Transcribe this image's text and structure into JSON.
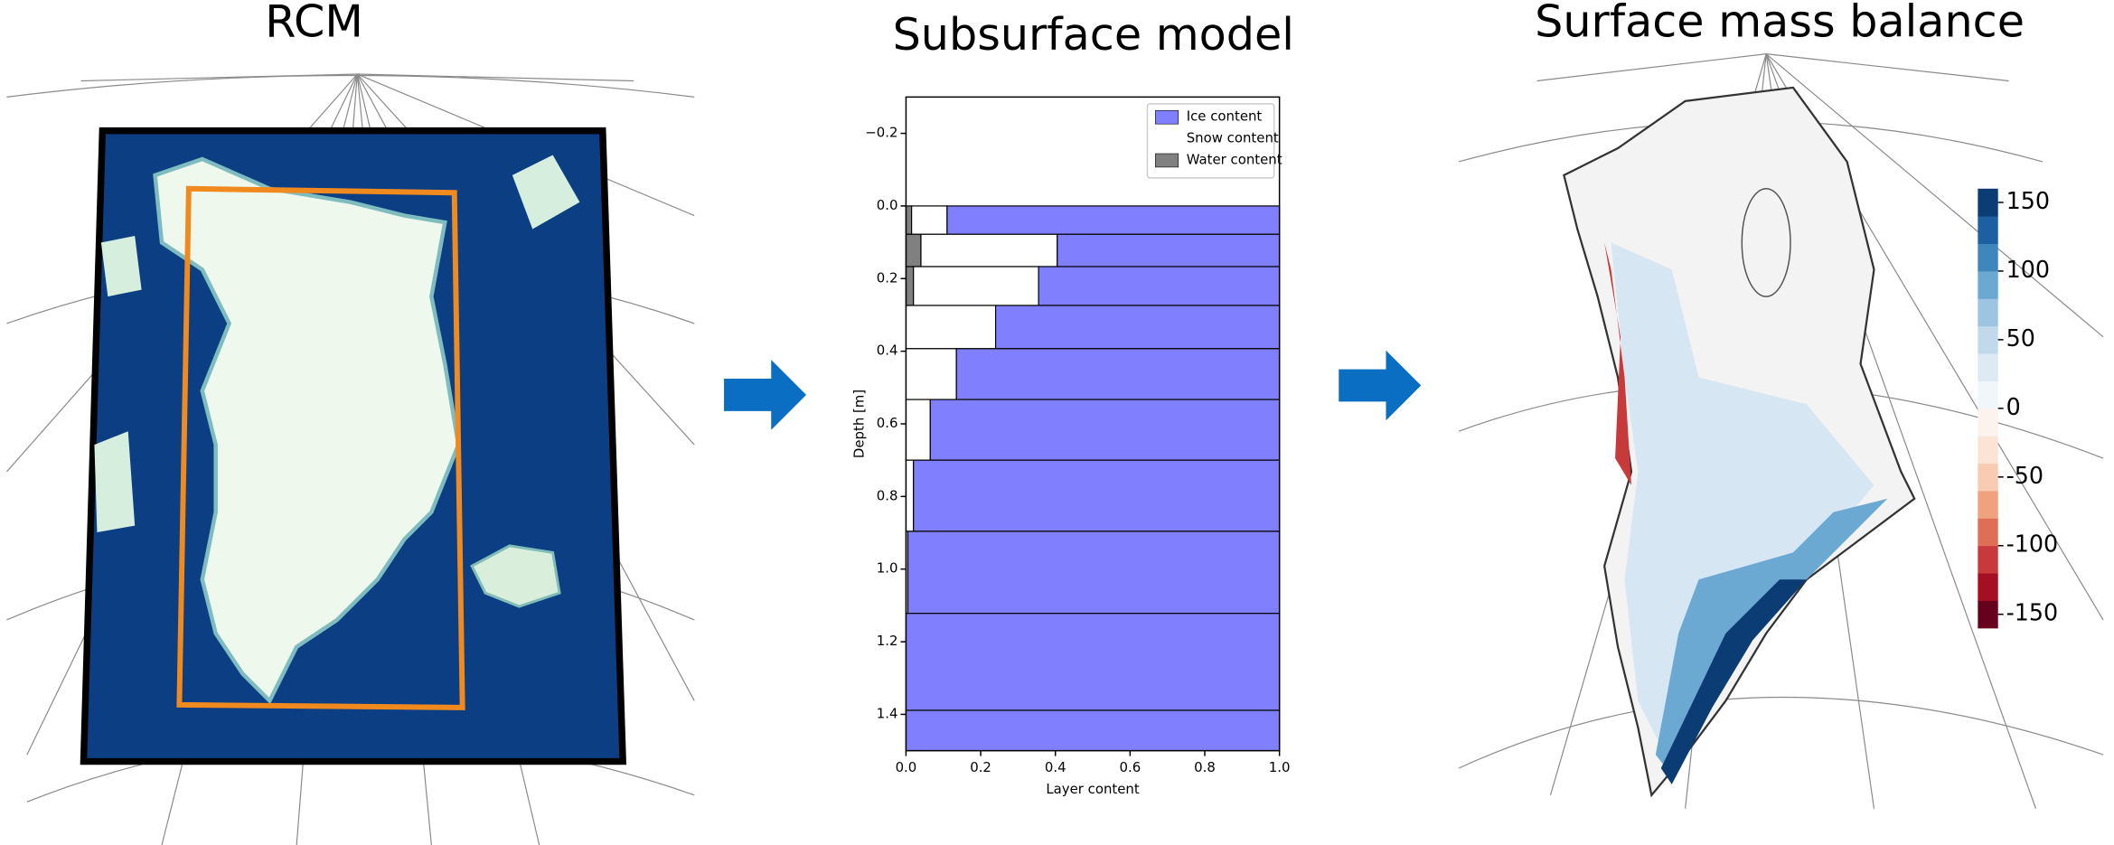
{
  "panels": [
    {
      "title": "RCM"
    },
    {
      "title": "Subsurface model"
    },
    {
      "title": "Surface mass balance",
      "colorbar": {
        "lim": [
          -160,
          160
        ],
        "ticks": [
          150,
          100,
          50,
          0,
          -50,
          -100,
          -150
        ],
        "colors": [
          "#67001f",
          "#a50f24",
          "#c7393b",
          "#de6e56",
          "#f0a27f",
          "#f9cbb3",
          "#fbe3d6",
          "#fdf3ee",
          "#f1f6fa",
          "#dde9f3",
          "#c2d9ec",
          "#9dc5e1",
          "#6ba8d2",
          "#3f86bd",
          "#1d5fa2",
          "#0b3c73"
        ]
      }
    }
  ],
  "chart_data": {
    "type": "stacked-depth-bar",
    "xlabel": "Layer content",
    "ylabel": "Depth [m]",
    "y_edges": [
      0.0,
      0.078,
      0.167,
      0.274,
      0.393,
      0.533,
      0.7,
      0.896,
      1.122,
      1.389,
      1.5
    ],
    "series": [
      {
        "name": "Water content",
        "color": "#808080",
        "values": [
          0.015,
          0.04,
          0.02,
          0,
          0,
          0,
          0,
          0,
          0,
          0
        ]
      },
      {
        "name": "Snow content",
        "color": "#ffffff",
        "values": [
          0.095,
          0.365,
          0.335,
          0.24,
          0.135,
          0.065,
          0.02,
          0.005,
          0,
          0
        ]
      },
      {
        "name": "Ice content",
        "color": "#8080ff",
        "values": [
          0.89,
          0.595,
          0.645,
          0.76,
          0.865,
          0.935,
          0.98,
          0.995,
          1,
          1
        ]
      }
    ],
    "legend_order": [
      2,
      1,
      0
    ],
    "legend": "upper right",
    "xlim": [
      0,
      1
    ],
    "xticks": [
      {
        "value": 0,
        "label": "0.0"
      },
      0.2,
      0.4,
      0.6,
      0.8,
      {
        "value": 1,
        "label": "1.0"
      }
    ],
    "ylim": [
      -0.3,
      1.5
    ],
    "y_inverted": true,
    "yticks": [
      {
        "value": -0.2,
        "label": "−0.2"
      },
      {
        "value": 0,
        "label": "0.0"
      },
      0.2,
      0.4,
      0.6,
      0.8,
      {
        "value": 1,
        "label": "1.0"
      },
      1.2,
      1.4
    ]
  }
}
